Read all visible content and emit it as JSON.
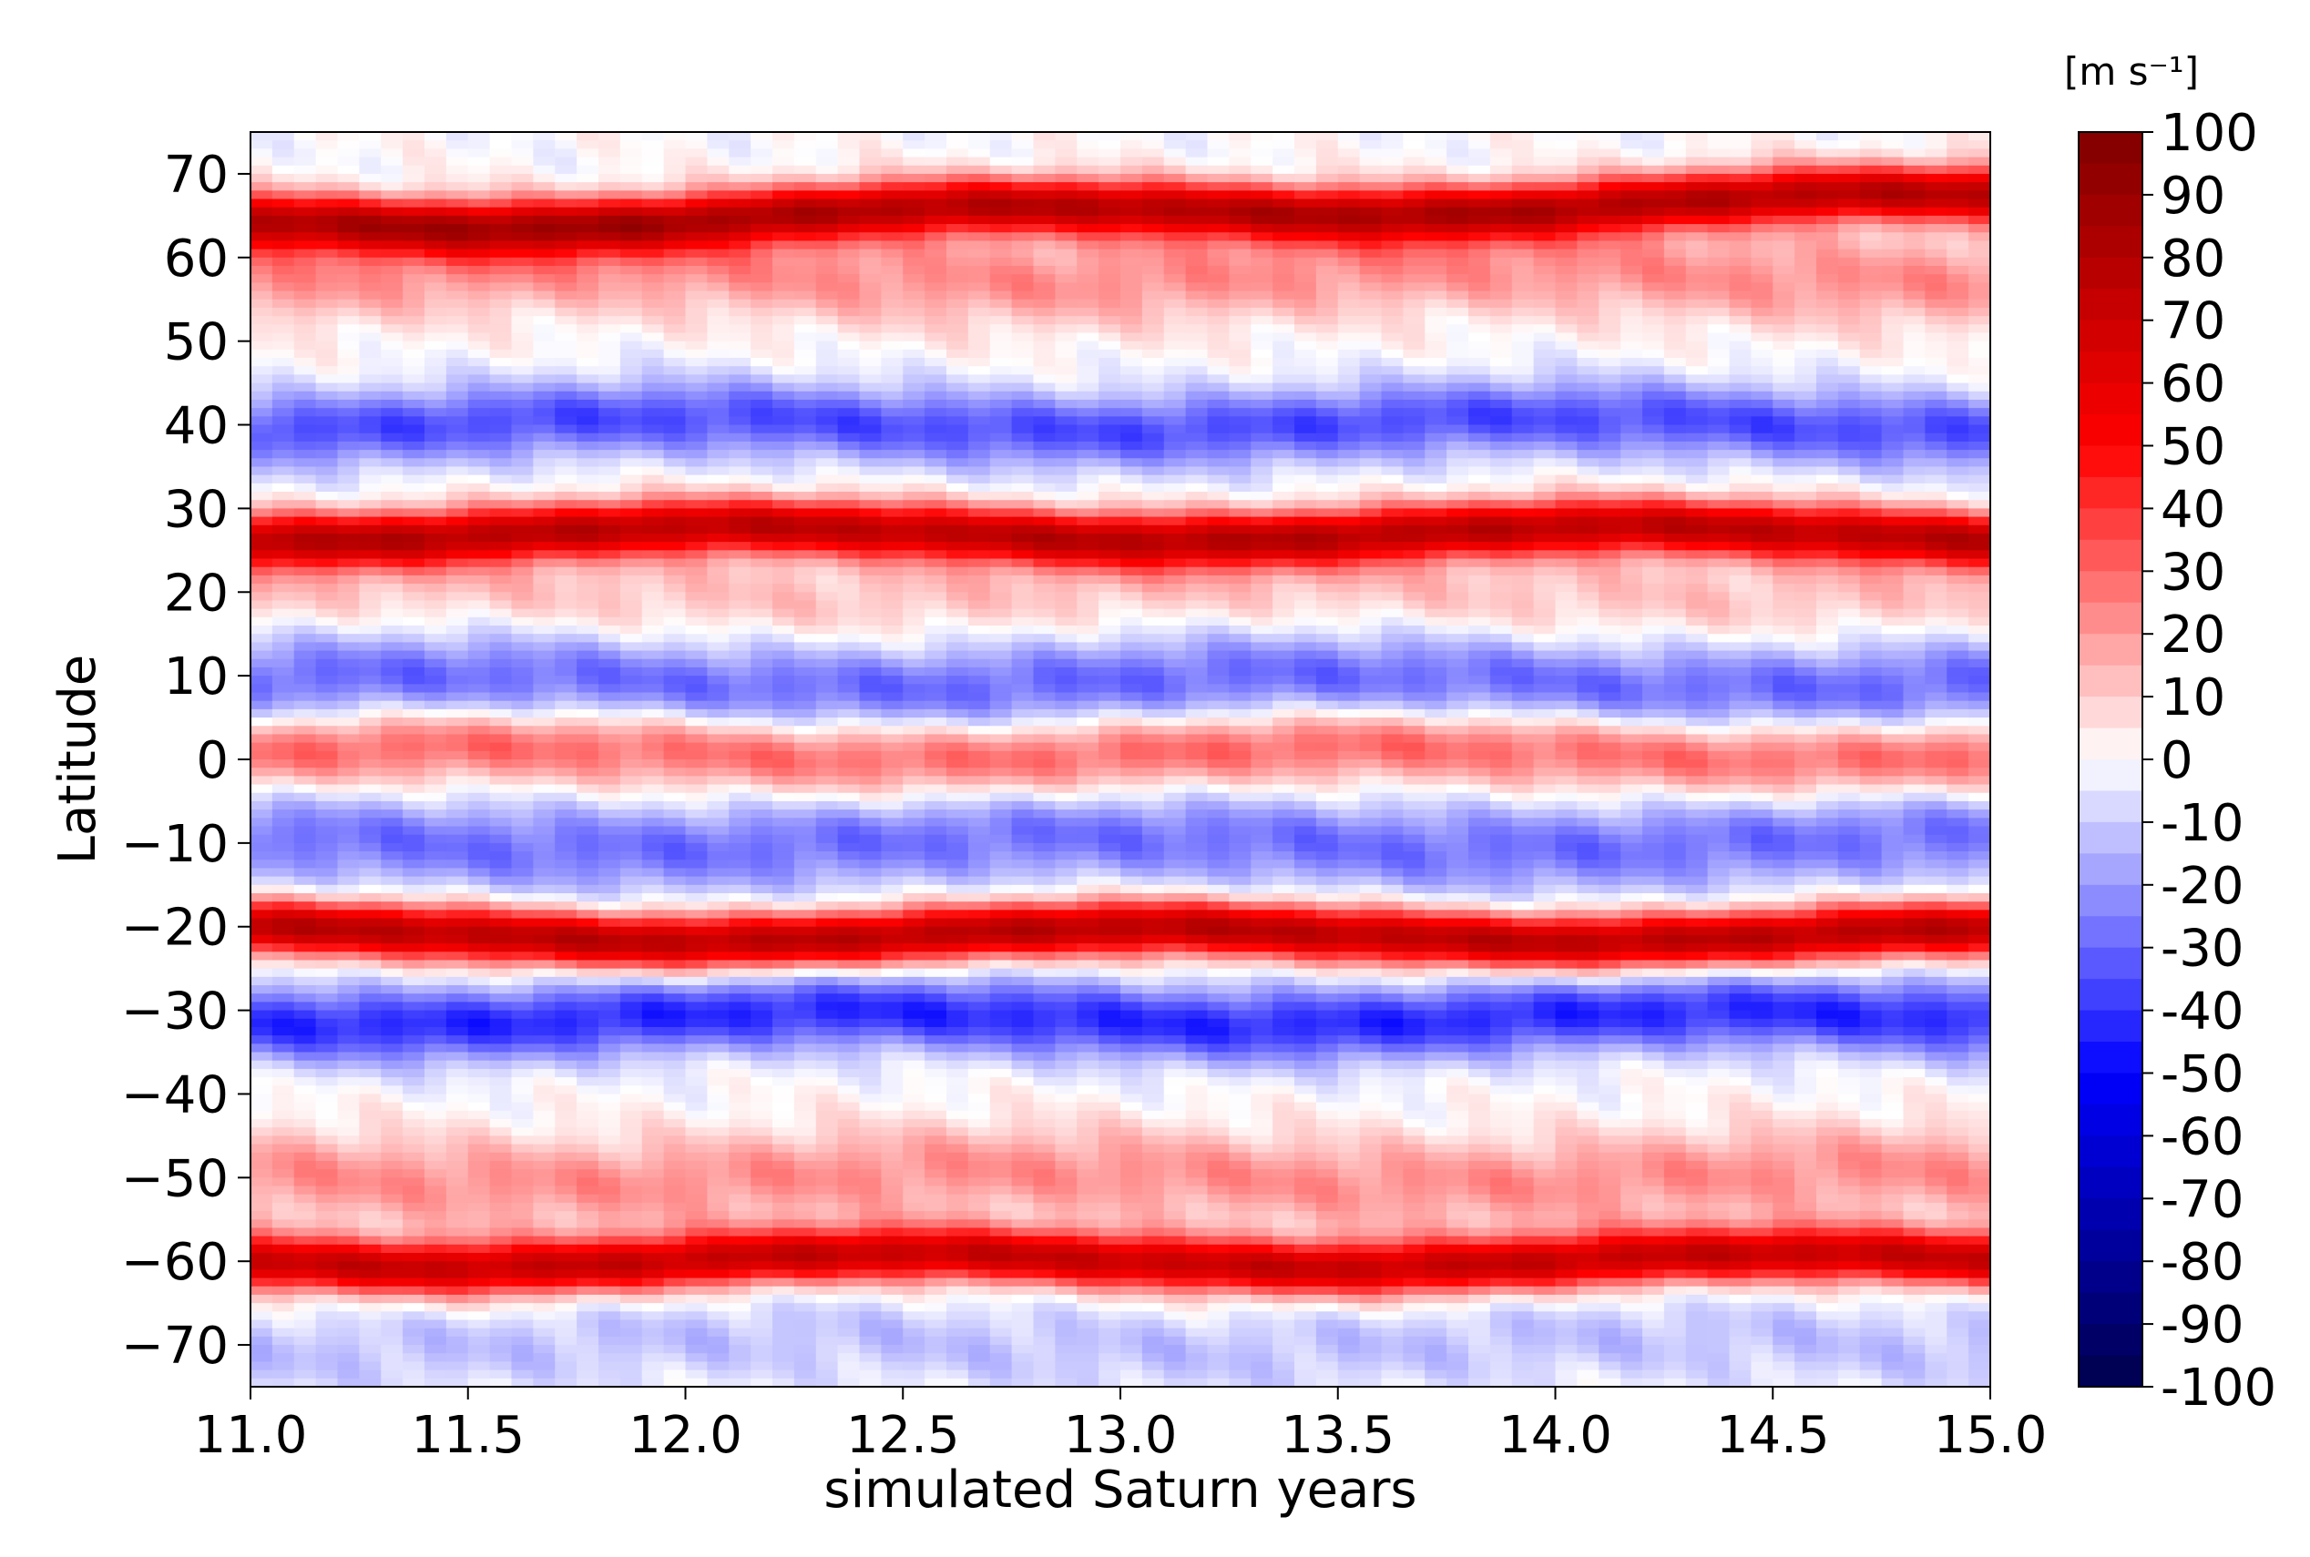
{
  "chart_data": {
    "type": "heatmap",
    "subtype": "filled-contour",
    "xlabel": "simulated Saturn years",
    "ylabel": "Latitude",
    "xlim": [
      11.0,
      15.0
    ],
    "ylim": [
      -75,
      75
    ],
    "x_ticks": [
      11.0,
      11.5,
      12.0,
      12.5,
      13.0,
      13.5,
      14.0,
      14.5,
      15.0
    ],
    "x_tick_labels": [
      "11.0",
      "11.5",
      "12.0",
      "12.5",
      "13.0",
      "13.5",
      "14.0",
      "14.5",
      "15.0"
    ],
    "y_ticks": [
      70,
      60,
      50,
      40,
      30,
      20,
      10,
      0,
      -10,
      -20,
      -30,
      -40,
      -50,
      -60,
      -70
    ],
    "y_tick_labels": [
      "70",
      "60",
      "50",
      "40",
      "30",
      "20",
      "10",
      "0",
      "−10",
      "−20",
      "−30",
      "−40",
      "−50",
      "−60",
      "−70"
    ],
    "grid": false,
    "colormap": "seismic",
    "colorbar": {
      "unit_label": "[m s⁻¹]",
      "range": [
        -100,
        100
      ],
      "tick_values": [
        100,
        90,
        80,
        70,
        60,
        50,
        40,
        30,
        20,
        10,
        0,
        -10,
        -20,
        -30,
        -40,
        -50,
        -60,
        -70,
        -80,
        -90,
        -100
      ],
      "tick_labels": [
        "100",
        "90",
        "80",
        "70",
        "60",
        "50",
        "40",
        "30",
        "20",
        "10",
        "0",
        "-10",
        "-20",
        "-30",
        "-40",
        "-50",
        "-60",
        "-70",
        "-80",
        "-90",
        "-100"
      ],
      "placement": "right",
      "color_low": "#00004c",
      "color_mid": "#ffffff",
      "color_high": "#800000"
    },
    "zonal_jets": [
      {
        "lat": 64,
        "value": 78,
        "lat_end": 67
      },
      {
        "lat": 27,
        "value": 75
      },
      {
        "lat": 1,
        "value": 32
      },
      {
        "lat": -21,
        "value": 78
      },
      {
        "lat": -60,
        "value": 72
      },
      {
        "lat": 40,
        "value": -35
      },
      {
        "lat": 9,
        "value": -30
      },
      {
        "lat": -10,
        "value": -28
      },
      {
        "lat": -31,
        "value": -42
      },
      {
        "lat": 58,
        "value": 22
      },
      {
        "lat": 20,
        "value": 12
      },
      {
        "lat": -50,
        "value": 22
      },
      {
        "lat": -70,
        "value": -12
      }
    ]
  }
}
